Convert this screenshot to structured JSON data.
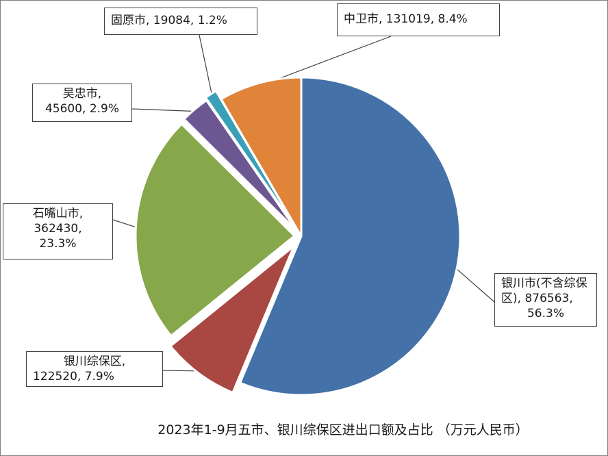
{
  "chart_data": {
    "type": "pie",
    "title": "2023年1-9月五市、银川综保区进出口额及占比 （万元人民币）",
    "series": [
      {
        "name": "银川市(不含综保区)",
        "value": 876563,
        "percent": "56.3%",
        "color": "#4472a8",
        "line1": "银川市(不含综保",
        "line2": "区), 876563,",
        "line3": "56.3%"
      },
      {
        "name": "银川综保区",
        "value": 122520,
        "percent": "7.9%",
        "color": "#a94743",
        "line1": "银川综保区,",
        "line2": "122520, 7.9%"
      },
      {
        "name": "石嘴山市",
        "value": 362430,
        "percent": "23.3%",
        "color": "#87a74b",
        "line1": "石嘴山市,",
        "line2": "362430,",
        "line3": "23.3%"
      },
      {
        "name": "吴忠市",
        "value": 45600,
        "percent": "2.9%",
        "color": "#6d5793",
        "line1": "吴忠市,",
        "line2": "45600, 2.9%"
      },
      {
        "name": "固原市",
        "value": 19084,
        "percent": "1.2%",
        "color": "#3aa0b8",
        "line1": "固原市, 19084, 1.2%"
      },
      {
        "name": "中卫市",
        "value": 131019,
        "percent": "8.4%",
        "color": "#e0843a",
        "line1": "中卫市, 131019, 8.4%"
      }
    ]
  }
}
